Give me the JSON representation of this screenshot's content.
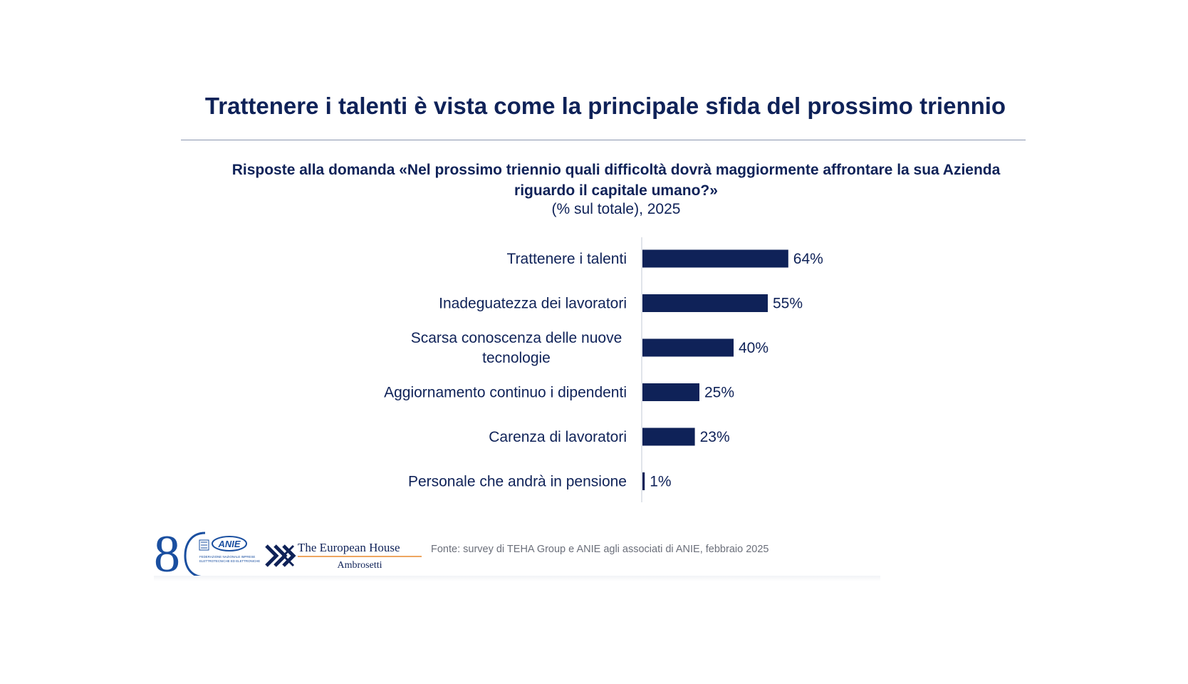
{
  "header": {
    "title": "Trattenere i talenti è vista come la principale sfida del prossimo triennio"
  },
  "subtitle": {
    "line1": "Risposte alla domanda «Nel prossimo triennio quali difficoltà dovrà maggiormente affrontare la sua Azienda",
    "line2": "riguardo il capitale umano?»",
    "unit": "(% sul totale), 2025"
  },
  "chart_data": {
    "type": "bar",
    "orientation": "horizontal",
    "categories": [
      [
        "Trattenere i talenti"
      ],
      [
        "Inadeguatezza dei lavoratori"
      ],
      [
        "Scarsa conoscenza delle nuove",
        "tecnologie"
      ],
      [
        "Aggiornamento continuo i dipendenti"
      ],
      [
        "Carenza di lavoratori"
      ],
      [
        "Personale che andrà in pensione"
      ]
    ],
    "values": [
      64,
      55,
      40,
      25,
      23,
      1
    ],
    "value_labels": [
      "64%",
      "55%",
      "40%",
      "25%",
      "23%",
      "1%"
    ],
    "xlim": [
      0,
      100
    ],
    "bar_color": "#0f2258",
    "grid": false,
    "legend": "none"
  },
  "footer": {
    "logo_80": "8",
    "anie_logo_text": "ANIE",
    "anie_caption_line1": "FEDERAZIONE NAZIONALE IMPRESE",
    "anie_caption_line2": "ELETTROTECNICHE ED ELETTRONICHE",
    "teh_line1": "The European House",
    "teh_line2": "Ambrosetti",
    "source": "Fonte: survey di TEHA Group e ANIE agli associati di ANIE, febbraio 2025"
  },
  "colors": {
    "primary": "#0f2258",
    "accent_orange": "#e8892b",
    "source_text": "#6b6f7a"
  }
}
